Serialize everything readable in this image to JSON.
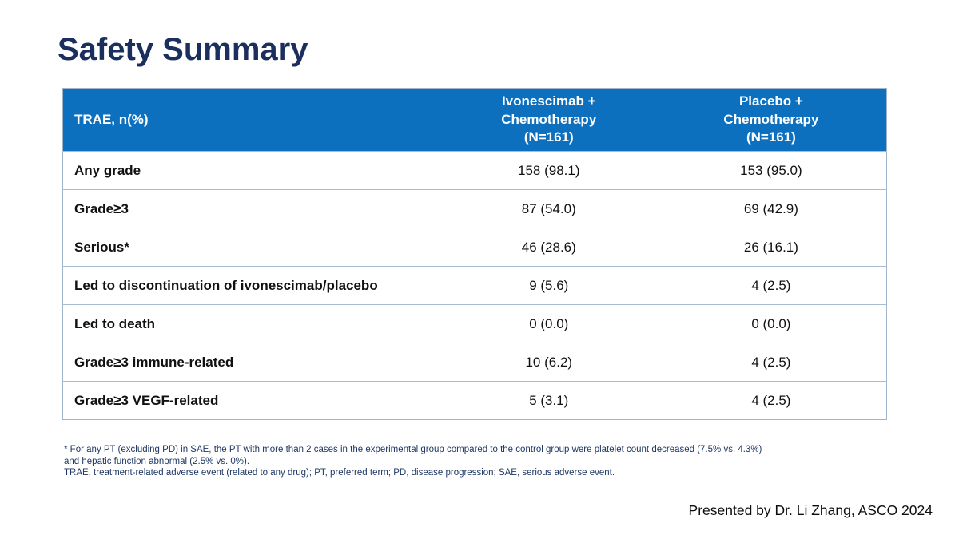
{
  "slide": {
    "title": "Safety Summary",
    "presenter_credit": "Presented by Dr. Li Zhang, ASCO 2024"
  },
  "colors": {
    "slide_bg": "#ffffff",
    "title_navy": "#1b2f5e",
    "header_blue": "#0c70bf",
    "header_text": "#ffffff",
    "table_border": "#9fb3cb",
    "divider": "#a8bbd2",
    "footnote_navy": "#1f3864"
  },
  "table": {
    "header": {
      "col1": "TRAE, n(%)",
      "col2": "Ivonescimab +\nChemotherapy\n(N=161)",
      "col3": "Placebo +\nChemotherapy\n(N=161)"
    },
    "rows": [
      {
        "label": "Any grade",
        "ivonescimab": "158 (98.1)",
        "placebo": "153 (95.0)"
      },
      {
        "label": "Grade≥3",
        "ivonescimab": "87 (54.0)",
        "placebo": "69 (42.9)"
      },
      {
        "label": "Serious*",
        "ivonescimab": "46 (28.6)",
        "placebo": "26 (16.1)"
      },
      {
        "label": "Led to discontinuation of ivonescimab/placebo",
        "ivonescimab": "9 (5.6)",
        "placebo": "4 (2.5)"
      },
      {
        "label": "Led to death",
        "ivonescimab": "0 (0.0)",
        "placebo": "0 (0.0)"
      },
      {
        "label": "Grade≥3 immune-related",
        "ivonescimab": "10 (6.2)",
        "placebo": "4 (2.5)"
      },
      {
        "label": "Grade≥3 VEGF-related",
        "ivonescimab": "5 (3.1)",
        "placebo": "4 (2.5)"
      }
    ]
  },
  "footnotes": {
    "line1": "* For any PT (excluding PD) in SAE, the PT with more than 2 cases in the experimental group compared to the control group were platelet count decreased (7.5% vs. 4.3%) and hepatic function abnormal (2.5% vs. 0%).",
    "line2": "TRAE, treatment-related adverse event (related to any drug); PT, preferred term; PD, disease progression; SAE, serious adverse event."
  }
}
